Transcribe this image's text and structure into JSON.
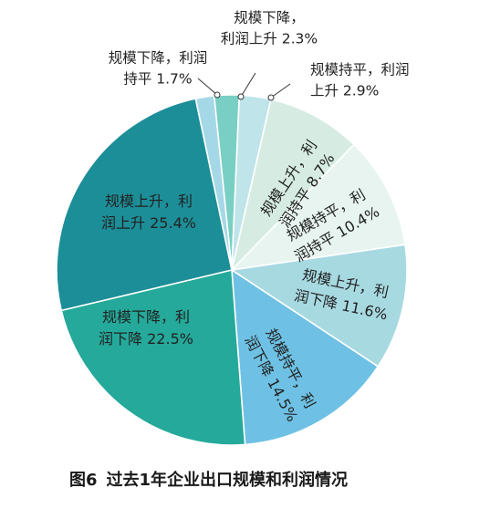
{
  "chart_data": {
    "type": "pie",
    "title": "过去1年企业出口规模和利润情况",
    "figure_number": "图6",
    "slices": [
      {
        "label_lines": [
          "规模下降，",
          "利润上升"
        ],
        "value_text": "2.3%",
        "value": 2.3,
        "color": "#79cfc4"
      },
      {
        "label_lines": [
          "规模持平，利润",
          "上升"
        ],
        "value_text": "2.9%",
        "value": 2.9,
        "color": "#bfe4ea"
      },
      {
        "label_lines": [
          "规模上升，利",
          "润持平"
        ],
        "value_text": "8.7%",
        "value": 8.7,
        "color": "#d6ece2"
      },
      {
        "label_lines": [
          "规模持平，利",
          "润持平"
        ],
        "value_text": "10.4%",
        "value": 10.4,
        "color": "#e7f4f0"
      },
      {
        "label_lines": [
          "规模上升，利",
          "润下降"
        ],
        "value_text": "11.6%",
        "value": 11.6,
        "color": "#a7d9e1"
      },
      {
        "label_lines": [
          "规模持平，利",
          "润下降"
        ],
        "value_text": "14.5%",
        "value": 14.5,
        "color": "#6ec1e4"
      },
      {
        "label_lines": [
          "规模下降，利",
          "润下降"
        ],
        "value_text": "22.5%",
        "value": 22.5,
        "color": "#24a99a"
      },
      {
        "label_lines": [
          "规模上升，利",
          "润上升"
        ],
        "value_text": "25.4%",
        "value": 25.4,
        "color": "#1c8e98"
      },
      {
        "label_lines": [
          "规模下降，利润",
          "持平"
        ],
        "value_text": "1.7%",
        "value": 1.7,
        "color": "#a5d8e6"
      }
    ]
  }
}
